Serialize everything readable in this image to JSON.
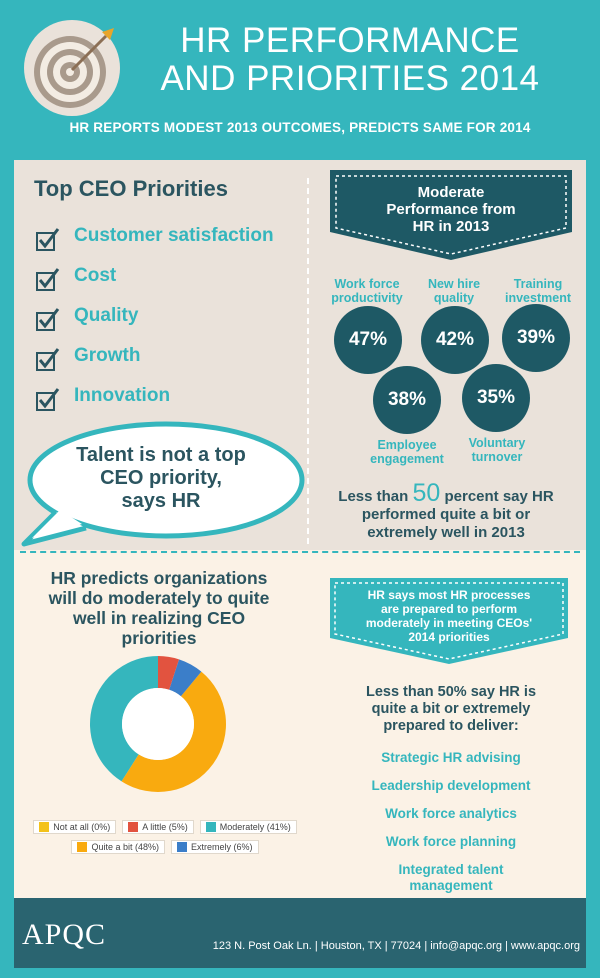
{
  "header": {
    "title_line1": "HR PERFORMANCE",
    "title_line2": "AND PRIORITIES 2014",
    "subtitle": "HR REPORTS MODEST 2013 OUTCOMES, PREDICTS SAME FOR 2014",
    "badge_icon": "target-arrow-icon"
  },
  "ceo": {
    "title": "Top CEO Priorities",
    "items": [
      "Customer satisfaction",
      "Cost",
      "Quality",
      "Growth",
      "Innovation"
    ],
    "check_icon": "checkbox-checked-icon"
  },
  "bubble": {
    "line1": "Talent is not a top",
    "line2": "CEO priority,",
    "line3": "says HR"
  },
  "performance": {
    "banner_line1": "Moderate",
    "banner_line2": "Performance from",
    "banner_line3": "HR in 2013",
    "metrics": [
      {
        "label1": "Work force",
        "label2": "productivity",
        "value": "47%"
      },
      {
        "label1": "New hire",
        "label2": "quality",
        "value": "42%"
      },
      {
        "label1": "Training",
        "label2": "investment",
        "value": "39%"
      },
      {
        "label1": "Employee",
        "label2": "engagement",
        "value": "38%"
      },
      {
        "label1": "Voluntary",
        "label2": "turnover",
        "value": "35%"
      }
    ],
    "summary_pre": "Less than",
    "summary_number": "50",
    "summary_post": "percent say HR",
    "summary_line2": "performed quite a bit or",
    "summary_line3": "extremely well in 2013"
  },
  "prediction": {
    "title_line1": "HR predicts organizations",
    "title_line2": "will do moderately to quite",
    "title_line3": "well in realizing CEO",
    "title_line4": "priorities"
  },
  "chart_data": {
    "type": "pie",
    "title": "",
    "categories": [
      "Not at all",
      "A little",
      "Moderately",
      "Quite a bit",
      "Extremely"
    ],
    "values": [
      0,
      5,
      41,
      48,
      6
    ],
    "legend_labels": [
      "Not at all (0%)",
      "A little (5%)",
      "Moderately (41%)",
      "Quite a bit (48%)",
      "Extremely (6%)"
    ],
    "colors": [
      "#f3c21b",
      "#e2533f",
      "#35b6bd",
      "#f9aa0f",
      "#3b7ec9"
    ],
    "legend_placement": "bottom",
    "donut": true
  },
  "processes": {
    "banner_line1": "HR says most HR processes",
    "banner_line2": "are prepared to perform",
    "banner_line3": "moderately in meeting CEOs'",
    "banner_line4": "2014 priorities",
    "prepared_line1": "Less than 50% say HR is",
    "prepared_line2": "quite a bit or extremely",
    "prepared_line3": "prepared to deliver:",
    "items": [
      "Strategic HR advising",
      "Leadership development",
      "Work force analytics",
      "Work force planning"
    ],
    "last_item_line1": "Integrated talent",
    "last_item_line2": "management"
  },
  "footer": {
    "logo": "APQC",
    "address": "123 N. Post Oak Ln. | Houston, TX | 77024 | info@apqc.org | www.apqc.org"
  },
  "colors": {
    "teal": "#35b6bd",
    "dark_teal": "#1e5965",
    "navy_text": "#2b5560",
    "footer": "#2a6470"
  }
}
